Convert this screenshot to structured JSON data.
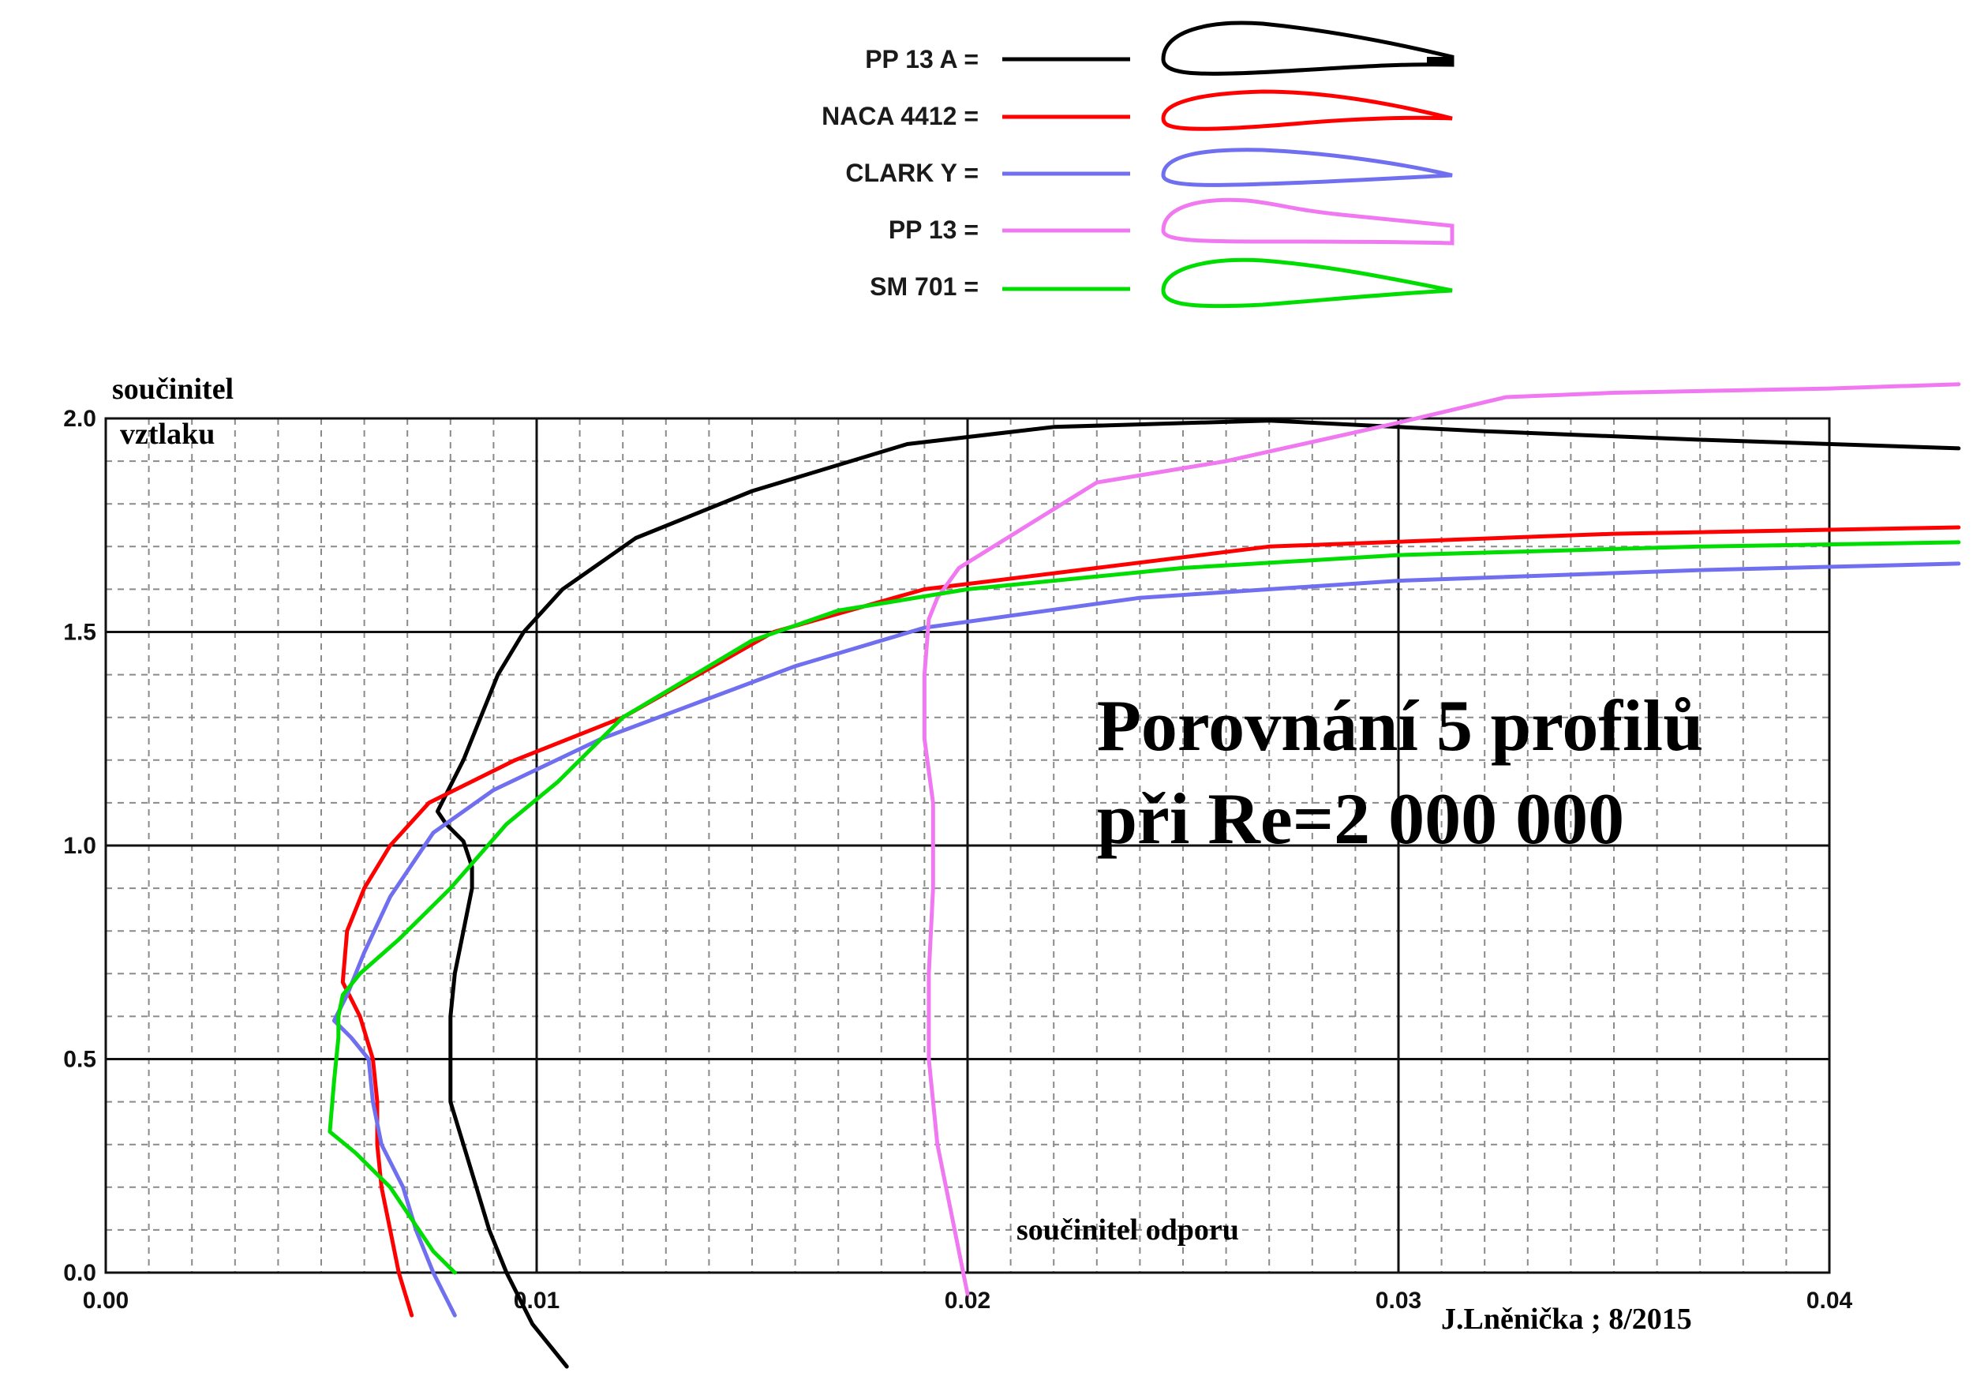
{
  "chart_data": {
    "type": "line",
    "title": "Porovnání 5 profilů",
    "subtitle": "při Re=2 000 000",
    "xlabel": "součinitel odporu",
    "ylabel_line1": "součinitel",
    "ylabel_line2": "vztlaku",
    "author": "J.Lněnička ; 8/2015",
    "xlim": [
      0.0,
      0.04
    ],
    "ylim": [
      0.0,
      2.0
    ],
    "x_ticks": [
      0.0,
      0.01,
      0.02,
      0.03,
      0.04
    ],
    "x_tick_labels": [
      "0.00",
      "0.01",
      "0.02",
      "0.03",
      "0.04"
    ],
    "y_ticks": [
      0.0,
      0.5,
      1.0,
      1.5,
      2.0
    ],
    "y_tick_labels": [
      "0.0",
      "0.5",
      "1.0",
      "1.5",
      "2.0"
    ],
    "grid": true,
    "legend_position": "top-center",
    "series": [
      {
        "name": "PP 13 A =",
        "color": "#000000",
        "points": [
          [
            0.0107,
            -0.22
          ],
          [
            0.0099,
            -0.12
          ],
          [
            0.0093,
            0.0
          ],
          [
            0.0089,
            0.1
          ],
          [
            0.0086,
            0.2
          ],
          [
            0.0083,
            0.3
          ],
          [
            0.008,
            0.4
          ],
          [
            0.008,
            0.5
          ],
          [
            0.008,
            0.6
          ],
          [
            0.0081,
            0.7
          ],
          [
            0.0083,
            0.8
          ],
          [
            0.0085,
            0.9
          ],
          [
            0.0085,
            0.95
          ],
          [
            0.0083,
            1.01
          ],
          [
            0.0079,
            1.05
          ],
          [
            0.0077,
            1.08
          ],
          [
            0.0079,
            1.12
          ],
          [
            0.0083,
            1.2
          ],
          [
            0.0087,
            1.3
          ],
          [
            0.0091,
            1.4
          ],
          [
            0.0097,
            1.5
          ],
          [
            0.0106,
            1.6
          ],
          [
            0.0123,
            1.72
          ],
          [
            0.015,
            1.83
          ],
          [
            0.0186,
            1.94
          ],
          [
            0.022,
            1.98
          ],
          [
            0.027,
            1.995
          ],
          [
            0.032,
            1.97
          ],
          [
            0.037,
            1.95
          ],
          [
            0.043,
            1.93
          ]
        ]
      },
      {
        "name": "NACA 4412 =",
        "color": "#ff0000",
        "points": [
          [
            0.0071,
            -0.1
          ],
          [
            0.0068,
            0.0
          ],
          [
            0.0066,
            0.1
          ],
          [
            0.0064,
            0.2
          ],
          [
            0.0063,
            0.3
          ],
          [
            0.0063,
            0.4
          ],
          [
            0.0062,
            0.5
          ],
          [
            0.0059,
            0.6
          ],
          [
            0.0055,
            0.68
          ],
          [
            0.0056,
            0.8
          ],
          [
            0.006,
            0.9
          ],
          [
            0.0066,
            1.0
          ],
          [
            0.0075,
            1.1
          ],
          [
            0.0095,
            1.2
          ],
          [
            0.012,
            1.3
          ],
          [
            0.0155,
            1.5
          ],
          [
            0.019,
            1.6
          ],
          [
            0.023,
            1.65
          ],
          [
            0.027,
            1.7
          ],
          [
            0.035,
            1.73
          ],
          [
            0.043,
            1.745
          ]
        ]
      },
      {
        "name": "CLARK Y =",
        "color": "#6f6ff0",
        "points": [
          [
            0.0081,
            -0.1
          ],
          [
            0.0076,
            0.0
          ],
          [
            0.0072,
            0.1
          ],
          [
            0.0069,
            0.2
          ],
          [
            0.0064,
            0.3
          ],
          [
            0.0062,
            0.4
          ],
          [
            0.0061,
            0.5
          ],
          [
            0.0057,
            0.55
          ],
          [
            0.0053,
            0.59
          ],
          [
            0.0056,
            0.65
          ],
          [
            0.006,
            0.75
          ],
          [
            0.0066,
            0.88
          ],
          [
            0.0076,
            1.03
          ],
          [
            0.009,
            1.13
          ],
          [
            0.0115,
            1.25
          ],
          [
            0.016,
            1.42
          ],
          [
            0.019,
            1.51
          ],
          [
            0.024,
            1.58
          ],
          [
            0.03,
            1.62
          ],
          [
            0.037,
            1.645
          ],
          [
            0.043,
            1.66
          ]
        ]
      },
      {
        "name": "PP  13 =",
        "color": "#f078f0",
        "points": [
          [
            0.02,
            -0.05
          ],
          [
            0.0199,
            0.0
          ],
          [
            0.0196,
            0.15
          ],
          [
            0.0193,
            0.3
          ],
          [
            0.0191,
            0.5
          ],
          [
            0.0191,
            0.7
          ],
          [
            0.0192,
            0.9
          ],
          [
            0.0192,
            1.1
          ],
          [
            0.019,
            1.25
          ],
          [
            0.019,
            1.4
          ],
          [
            0.0191,
            1.53
          ],
          [
            0.0193,
            1.58
          ],
          [
            0.0198,
            1.65
          ],
          [
            0.023,
            1.85
          ],
          [
            0.026,
            1.9
          ],
          [
            0.03,
            1.99
          ],
          [
            0.0325,
            2.05
          ],
          [
            0.035,
            2.06
          ],
          [
            0.04,
            2.07
          ],
          [
            0.043,
            2.08
          ]
        ]
      },
      {
        "name": "SM 701 =",
        "color": "#00dd00",
        "points": [
          [
            0.0081,
            0.0
          ],
          [
            0.0076,
            0.05
          ],
          [
            0.0066,
            0.2
          ],
          [
            0.0058,
            0.28
          ],
          [
            0.0052,
            0.33
          ],
          [
            0.0053,
            0.45
          ],
          [
            0.0054,
            0.55
          ],
          [
            0.0054,
            0.6
          ],
          [
            0.0055,
            0.65
          ],
          [
            0.0059,
            0.7
          ],
          [
            0.0068,
            0.78
          ],
          [
            0.008,
            0.9
          ],
          [
            0.0093,
            1.05
          ],
          [
            0.0105,
            1.15
          ],
          [
            0.012,
            1.3
          ],
          [
            0.015,
            1.48
          ],
          [
            0.017,
            1.55
          ],
          [
            0.02,
            1.6
          ],
          [
            0.025,
            1.65
          ],
          [
            0.03,
            1.68
          ],
          [
            0.037,
            1.7
          ],
          [
            0.043,
            1.71
          ]
        ]
      }
    ]
  }
}
